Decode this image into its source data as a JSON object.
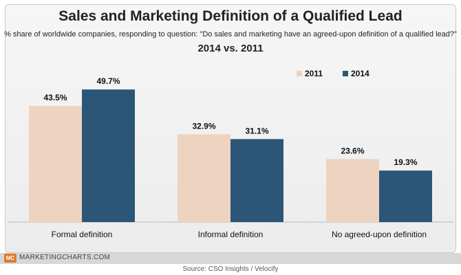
{
  "chart_data": {
    "type": "bar",
    "title": "Sales and Marketing Definition of a Qualified Lead",
    "subtitle": "% share of worldwide companies, responding to question: \"Do sales and marketing have an agreed-upon definition of a qualified lead?\"",
    "subtitle2": "2014 vs. 2011",
    "categories": [
      "Formal definition",
      "Informal definition",
      "No agreed-upon definition"
    ],
    "series": [
      {
        "name": "2011",
        "values": [
          43.5,
          32.9,
          23.6
        ],
        "labels": [
          "43.5%",
          "32.9%",
          "23.6%"
        ],
        "color": "#eed3c1"
      },
      {
        "name": "2014",
        "values": [
          49.7,
          31.1,
          19.3
        ],
        "labels": [
          "49.7%",
          "31.1%",
          "19.3%"
        ],
        "color": "#2b5677"
      }
    ],
    "ylim": [
      0,
      60
    ],
    "legend": "top-right",
    "grid": false
  },
  "footer": {
    "logo": "MC",
    "brand": "MARKETINGCHARTS.COM",
    "source": "Source: CSO Insights / Velocify"
  }
}
